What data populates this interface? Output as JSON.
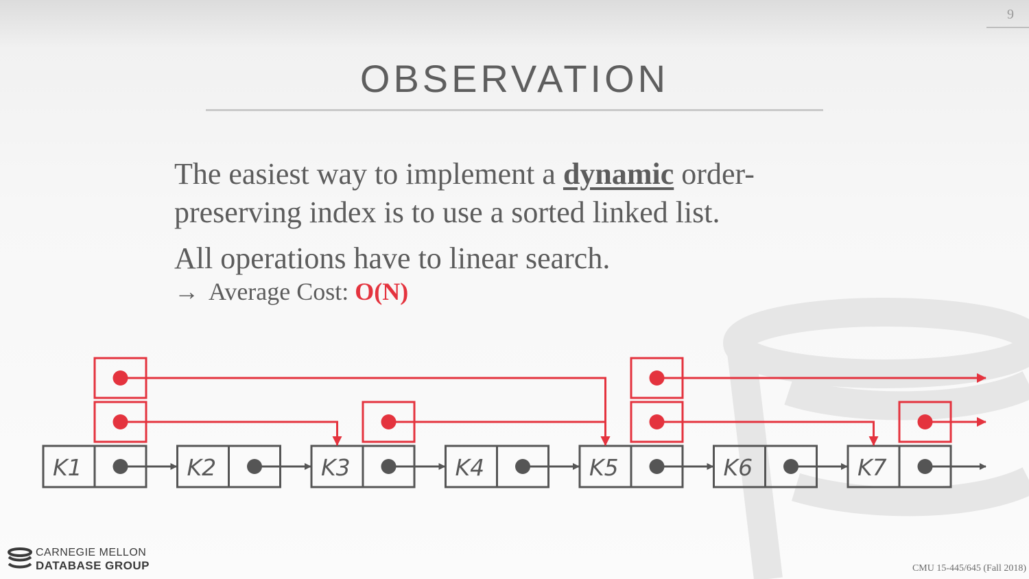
{
  "slide": {
    "number": "9",
    "title": "OBSERVATION",
    "paragraph1": {
      "before": "The easiest way to implement a ",
      "emphasis": "dynamic",
      "after": " order-preserving index is to use a sorted linked list."
    },
    "paragraph2": "All operations have to linear search.",
    "sub_bullet": {
      "arrow": "→",
      "label": "Average Cost: ",
      "value": "O(N)"
    }
  },
  "diagram": {
    "keys": [
      "K1",
      "K2",
      "K3",
      "K4",
      "K5",
      "K6",
      "K7"
    ],
    "level1_nodes": [
      "K1",
      "K3",
      "K5",
      "K7"
    ],
    "level2_nodes": [
      "K1",
      "K5"
    ],
    "colors": {
      "node": "#555555",
      "skip": "#e4333e"
    }
  },
  "footer": {
    "org_line1": "CARNEGIE MELLON",
    "org_line2": "DATABASE GROUP",
    "course": "CMU 15-445/645 (Fall 2018)"
  }
}
